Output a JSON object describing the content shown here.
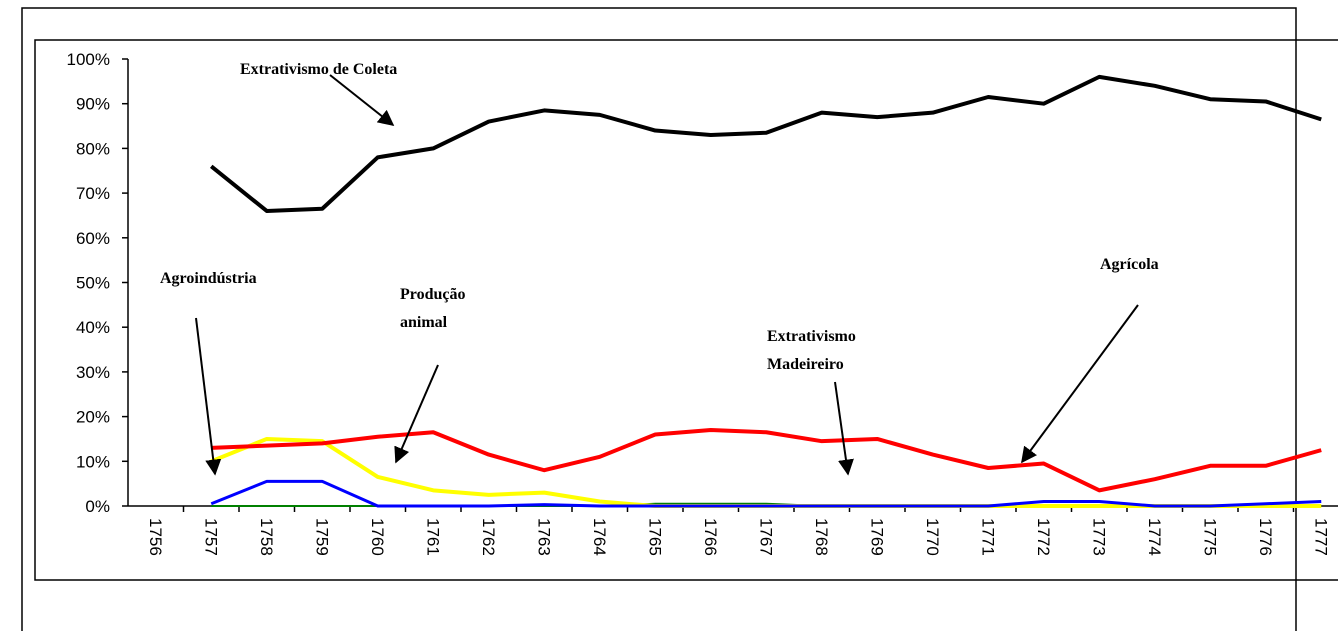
{
  "chart_data": {
    "type": "line",
    "categories": [
      "1756",
      "1757",
      "1758",
      "1759",
      "1760",
      "1761",
      "1762",
      "1763",
      "1764",
      "1765",
      "1766",
      "1767",
      "1768",
      "1769",
      "1770",
      "1771",
      "1772",
      "1773",
      "1774",
      "1775",
      "1776",
      "1777"
    ],
    "series": [
      {
        "name": "Extrativismo Madeireiro",
        "color": "#008000",
        "values": [
          null,
          0,
          0,
          0,
          0,
          0,
          0,
          0,
          0,
          0.5,
          0.5,
          0.5,
          0,
          0,
          0,
          0,
          0,
          0,
          0,
          0,
          0,
          0
        ]
      },
      {
        "name": "Produção animal",
        "color": "#ffff00",
        "values": [
          null,
          10,
          15,
          14.5,
          6.5,
          3.5,
          2.5,
          3,
          1,
          0,
          0,
          0,
          0,
          0,
          0,
          0,
          0,
          0,
          0,
          0,
          0,
          0
        ]
      },
      {
        "name": "Agroindústria",
        "color": "#0000ff",
        "values": [
          null,
          0.5,
          5.5,
          5.5,
          0,
          0,
          0,
          0.3,
          0,
          0,
          0,
          0,
          0,
          0,
          0,
          0,
          1,
          1,
          0,
          0,
          0.5,
          1
        ]
      },
      {
        "name": "Agrícola",
        "color": "#ff0000",
        "values": [
          null,
          13,
          13.5,
          14,
          15.5,
          16.5,
          11.5,
          8,
          11,
          16,
          17,
          16.5,
          14.5,
          15,
          11.5,
          8.5,
          9.5,
          3.5,
          6,
          9,
          9,
          12.5
        ]
      },
      {
        "name": "Extrativismo de Coleta",
        "color": "#000000",
        "values": [
          null,
          76,
          66,
          66.5,
          78,
          80,
          86,
          88.5,
          87.5,
          84,
          83,
          83.5,
          88,
          87,
          88,
          91.5,
          90,
          96,
          94,
          91,
          90.5,
          86.5
        ]
      }
    ],
    "ylim": [
      0,
      100
    ],
    "yticks": [
      {
        "value": 0,
        "label": "0%"
      },
      {
        "value": 10,
        "label": "10%"
      },
      {
        "value": 20,
        "label": "20%"
      },
      {
        "value": 30,
        "label": "30%"
      },
      {
        "value": 40,
        "label": "40%"
      },
      {
        "value": 50,
        "label": "50%"
      },
      {
        "value": 60,
        "label": "60%"
      },
      {
        "value": 70,
        "label": "70%"
      },
      {
        "value": 80,
        "label": "80%"
      },
      {
        "value": 90,
        "label": "90%"
      },
      {
        "value": 100,
        "label": "100%"
      }
    ]
  }
}
